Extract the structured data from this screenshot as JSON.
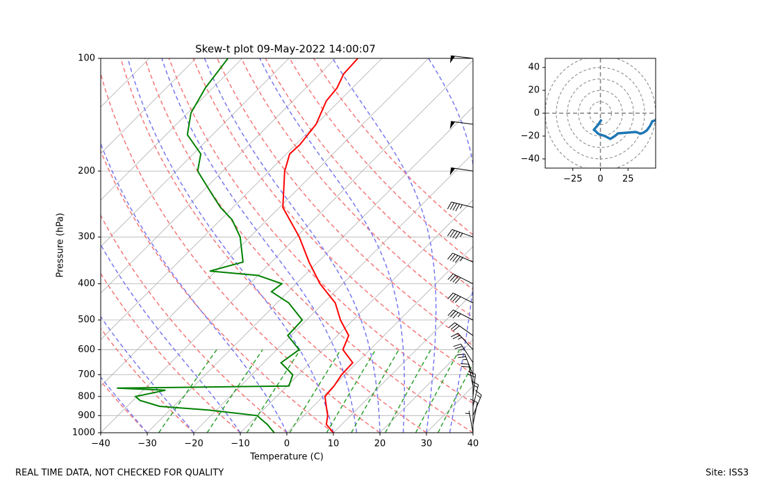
{
  "chart_data": {
    "type": "skewt",
    "title": "Skew-t plot 09-May-2022 14:00:07",
    "xlabel": "Temperature (C)",
    "ylabel": "Pressure (hPa)",
    "xlim": [
      -40,
      40
    ],
    "ylim": [
      1000,
      100
    ],
    "log_y": true,
    "grid": true,
    "xticks": [
      {
        "value": -40,
        "label": "−40"
      },
      {
        "value": -30,
        "label": "−30"
      },
      {
        "value": -20,
        "label": "−20"
      },
      {
        "value": -10,
        "label": "−10"
      },
      0,
      10,
      20,
      30,
      40
    ],
    "yticks": [
      100,
      200,
      300,
      400,
      500,
      600,
      700,
      800,
      900,
      1000
    ],
    "series": [
      {
        "color": "#ff0000",
        "y": [
          1000,
          950,
          900,
          850,
          800,
          750,
          700,
          650,
          600,
          550,
          500,
          450,
          400,
          350,
          300,
          250,
          200,
          180,
          170,
          150,
          130,
          120,
          110,
          100
        ],
        "values": [
          10.0,
          6.7,
          5.1,
          2.8,
          0.4,
          0.1,
          -0.7,
          -0.9,
          -5.8,
          -7.6,
          -12.7,
          -17.5,
          -24.9,
          -31.9,
          -39.4,
          -49.3,
          -56.7,
          -59.3,
          -59.1,
          -60.0,
          -62.8,
          -63.3,
          -64.9,
          -65.2
        ]
      },
      {
        "color": "#008000",
        "y": [
          1000,
          950,
          900,
          870,
          850,
          820,
          800,
          770,
          760,
          750,
          700,
          650,
          600,
          550,
          500,
          450,
          420,
          400,
          380,
          370,
          350,
          300,
          270,
          250,
          230,
          200,
          180,
          160,
          140,
          120,
          100
        ],
        "values": [
          -2.7,
          -6.0,
          -10.1,
          -21.6,
          -33.0,
          -38.5,
          -40.3,
          -35.2,
          -46.1,
          -9.6,
          -11.2,
          -16.3,
          -15.2,
          -20.7,
          -20.9,
          -27.5,
          -33.6,
          -33.1,
          -40.0,
          -51.3,
          -46.1,
          -52.1,
          -57.5,
          -62.7,
          -67.5,
          -75.4,
          -78.4,
          -85.4,
          -89.3,
          -91.6,
          -93.1
        ]
      }
    ],
    "isotherms": [
      -110,
      -100,
      -90,
      -80,
      -70,
      -60,
      -50,
      -40,
      -30,
      -20,
      -10,
      0,
      10,
      20,
      30,
      40
    ],
    "isotherm_color": "#b0b0b0",
    "dry_adiabats": [
      -40,
      -30,
      -20,
      -10,
      0,
      10,
      20,
      30,
      40,
      50,
      60,
      70,
      80,
      90,
      100,
      110
    ],
    "dry_adiabat_color": "#f47676",
    "moist_adiabats": [
      -30,
      -20,
      -10,
      0,
      10,
      15,
      20,
      25,
      30,
      35
    ],
    "moist_adiabat_color": "#7777f0",
    "mixing_ratios": [
      0.4,
      1,
      2,
      4,
      7,
      10,
      16,
      24,
      32
    ],
    "mixing_ratio_top": 600,
    "mixing_ratio_color": "#2ca02c",
    "wind": {
      "color": "#000000",
      "pressure": [
        1000,
        950,
        900,
        850,
        800,
        750,
        700,
        650,
        600,
        550,
        500,
        450,
        400,
        350,
        300,
        250,
        200,
        150,
        100
      ],
      "u": [
        1,
        -2,
        -6,
        -4,
        -2,
        4,
        9,
        13,
        16,
        24,
        32,
        34,
        36,
        39,
        42,
        45,
        47,
        49,
        50
      ],
      "v": [
        -5.5,
        -10,
        -14.5,
        -16,
        -18,
        -20,
        -22.5,
        -20,
        -17.6,
        -17,
        -16.4,
        -17,
        -18,
        -17,
        -15,
        -11,
        -7,
        -6.5,
        -6
      ]
    },
    "hodograph": {
      "color": "#1f77b4",
      "ring_color": "#808080",
      "rings": [
        10,
        20,
        30,
        40,
        50
      ],
      "xlim": [
        -50,
        50
      ],
      "ylim": [
        -48,
        48
      ],
      "xticks": [
        {
          "value": -25,
          "label": "−25"
        },
        0,
        25
      ],
      "yticks": [
        {
          "value": -40,
          "label": "−40"
        },
        {
          "value": -20,
          "label": "−20"
        },
        0,
        20,
        40
      ]
    },
    "footer_left": "REAL TIME DATA, NOT CHECKED FOR QUALITY",
    "footer_right": "Site: ISS3"
  }
}
